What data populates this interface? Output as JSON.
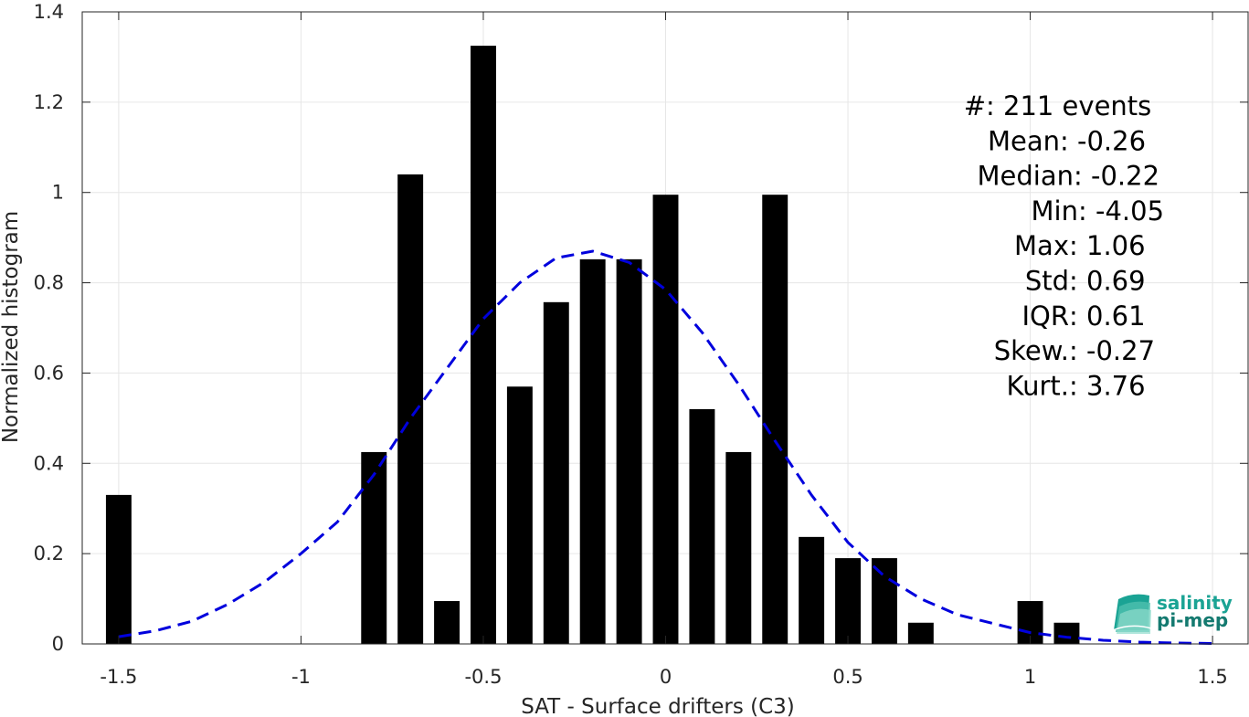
{
  "chart_data": {
    "type": "bar",
    "xlabel": "SAT - Surface drifters (C3)",
    "ylabel": "Normalized histogram",
    "xlim": [
      -1.6,
      1.6
    ],
    "ylim": [
      0,
      1.4
    ],
    "x_ticks": [
      "-1.5",
      "-1",
      "-0.5",
      "0",
      "0.5",
      "1",
      "1.5"
    ],
    "x_tick_values": [
      -1.5,
      -1,
      -0.5,
      0,
      0.5,
      1,
      1.5
    ],
    "y_ticks": [
      "0",
      "0.2",
      "0.4",
      "0.6",
      "0.8",
      "1",
      "1.2",
      "1.4"
    ],
    "y_tick_values": [
      0,
      0.2,
      0.4,
      0.6,
      0.8,
      1,
      1.2,
      1.4
    ],
    "grid": true,
    "bar_width": 0.07,
    "bars": {
      "x": [
        -1.5,
        -0.8,
        -0.7,
        -0.6,
        -0.5,
        -0.4,
        -0.3,
        -0.2,
        -0.1,
        0.0,
        0.1,
        0.2,
        0.3,
        0.4,
        0.5,
        0.6,
        0.7,
        1.0,
        1.1
      ],
      "values": [
        0.33,
        0.425,
        1.04,
        0.095,
        1.325,
        0.57,
        0.757,
        0.852,
        0.852,
        0.995,
        0.52,
        0.425,
        0.995,
        0.237,
        0.19,
        0.19,
        0.047,
        0.095,
        0.047
      ],
      "color": "#000000"
    },
    "fit_curve": {
      "style": "dashed",
      "color": "#0000dd",
      "x": [
        -1.5,
        -1.4,
        -1.3,
        -1.2,
        -1.1,
        -1.0,
        -0.9,
        -0.8,
        -0.7,
        -0.6,
        -0.5,
        -0.4,
        -0.3,
        -0.2,
        -0.1,
        0.0,
        0.1,
        0.2,
        0.3,
        0.4,
        0.5,
        0.6,
        0.7,
        0.8,
        0.9,
        1.0,
        1.1,
        1.2,
        1.3,
        1.4,
        1.5
      ],
      "y": [
        0.016,
        0.029,
        0.05,
        0.088,
        0.137,
        0.2,
        0.27,
        0.375,
        0.5,
        0.61,
        0.72,
        0.8,
        0.855,
        0.87,
        0.845,
        0.785,
        0.69,
        0.575,
        0.45,
        0.33,
        0.225,
        0.15,
        0.1,
        0.065,
        0.045,
        0.025,
        0.015,
        0.008,
        0.004,
        0.002,
        0.001
      ]
    },
    "stats": [
      "#  : 211 events",
      "Mean : -0.26",
      "Median : -0.22",
      "Min : -4.05",
      "Max : 1.06",
      "Std : 0.69",
      "IQR : 0.61",
      "Skew. : -0.27",
      "Kurt. : 3.76"
    ]
  },
  "logo": {
    "line1": "salinity",
    "line2": "pi-mep",
    "color1": "#1aa394",
    "color2": "#147a70"
  }
}
